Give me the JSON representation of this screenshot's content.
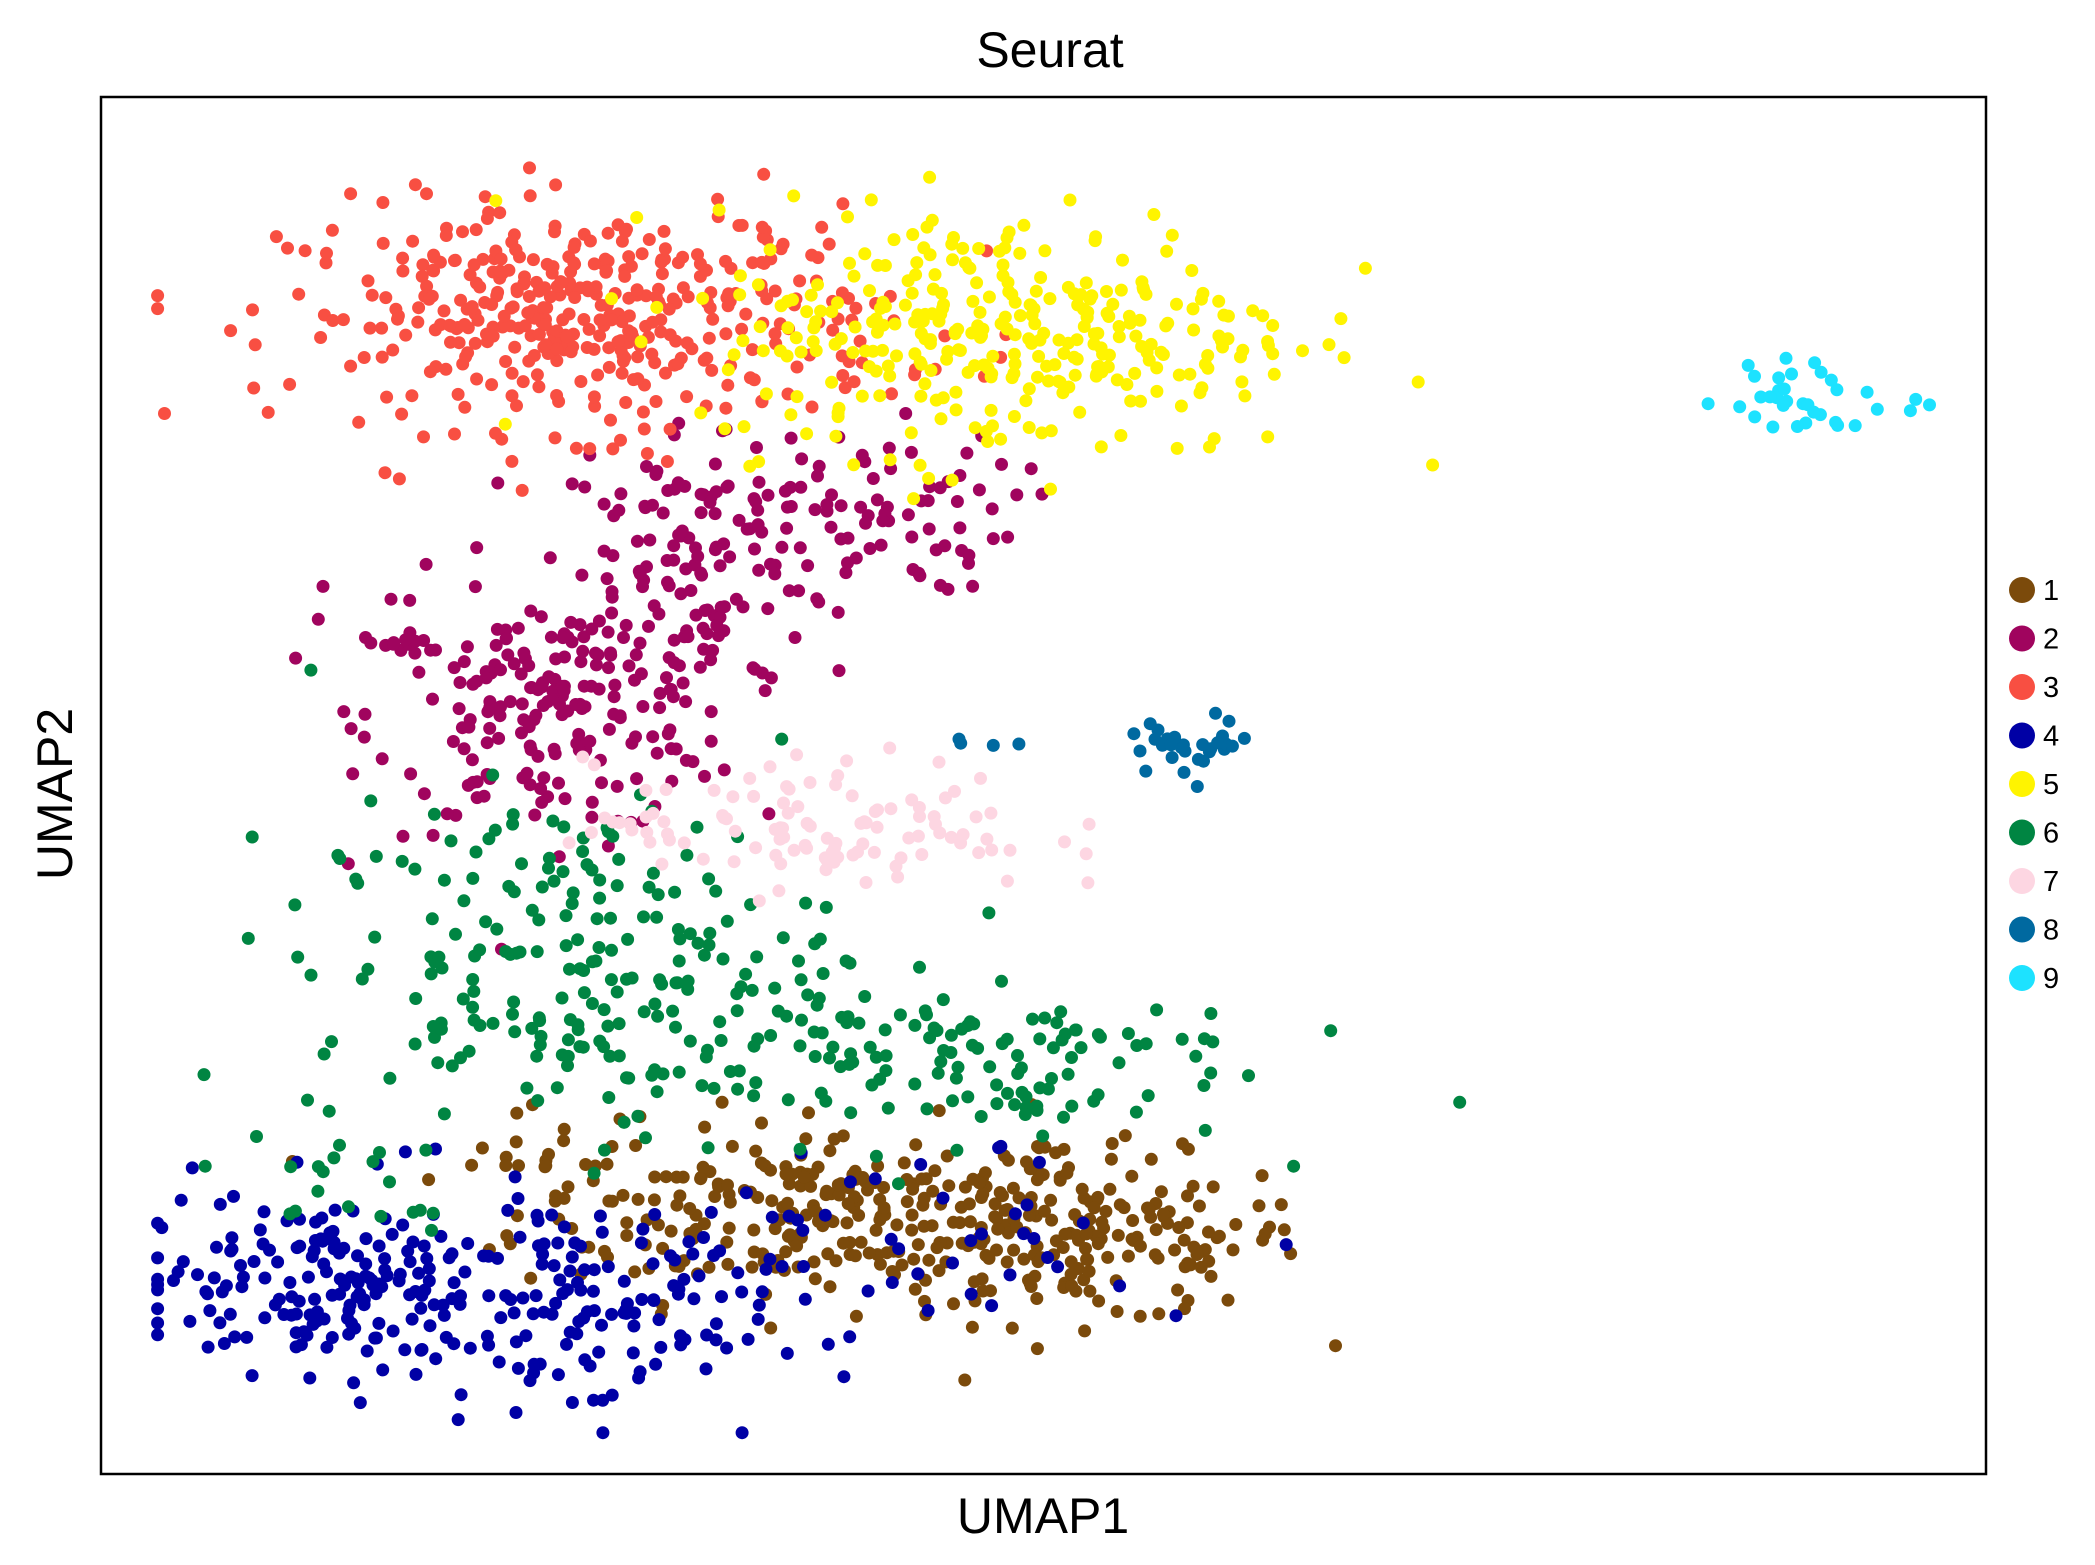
{
  "chart_data": {
    "type": "scatter",
    "title": "Seurat",
    "xlabel": "UMAP1",
    "ylabel": "UMAP2",
    "xlim": [
      0,
      100
    ],
    "ylim": [
      0,
      100
    ],
    "grid": false,
    "ticks": false,
    "legend_placement": "right",
    "series": [
      {
        "name": "1",
        "color": "#7B4A0B",
        "clusters": [
          {
            "cx": 38,
            "cy": 19,
            "sx": 8,
            "sy": 3.2,
            "n": 240
          },
          {
            "cx": 52,
            "cy": 17,
            "sx": 6,
            "sy": 3.0,
            "n": 170
          },
          {
            "cx": 24,
            "cy": 23,
            "sx": 2.5,
            "sy": 1.8,
            "n": 20
          }
        ]
      },
      {
        "name": "2",
        "color": "#A0045E",
        "clusters": [
          {
            "cx": 24,
            "cy": 55,
            "sx": 4.8,
            "sy": 4.2,
            "n": 190
          },
          {
            "cx": 31,
            "cy": 66,
            "sx": 3.8,
            "sy": 5.5,
            "n": 130
          },
          {
            "cx": 40,
            "cy": 70,
            "sx": 4.2,
            "sy": 3.0,
            "n": 80
          },
          {
            "cx": 15,
            "cy": 61,
            "sx": 1.6,
            "sy": 2.5,
            "n": 15
          }
        ]
      },
      {
        "name": "3",
        "color": "#F84F42",
        "clusters": [
          {
            "cx": 26,
            "cy": 84,
            "sx": 8.0,
            "sy": 4.0,
            "n": 420
          }
        ]
      },
      {
        "name": "4",
        "color": "#0000A5",
        "clusters": [
          {
            "cx": 13,
            "cy": 14,
            "sx": 5.5,
            "sy": 3.3,
            "n": 190
          },
          {
            "cx": 26,
            "cy": 11,
            "sx": 4.8,
            "sy": 3.8,
            "n": 110
          },
          {
            "cx": 42,
            "cy": 17,
            "sx": 10,
            "sy": 4.0,
            "n": 45
          }
        ]
      },
      {
        "name": "5",
        "color": "#FFF400",
        "clusters": [
          {
            "cx": 48,
            "cy": 83,
            "sx": 8.0,
            "sy": 4.5,
            "n": 330
          }
        ]
      },
      {
        "name": "6",
        "color": "#008542",
        "clusters": [
          {
            "cx": 25,
            "cy": 37,
            "sx": 7.0,
            "sy": 6.0,
            "n": 220
          },
          {
            "cx": 44,
            "cy": 30,
            "sx": 8.5,
            "sy": 3.0,
            "n": 130
          },
          {
            "cx": 12,
            "cy": 21,
            "sx": 3.5,
            "sy": 2.0,
            "n": 18
          }
        ]
      },
      {
        "name": "7",
        "color": "#FDD6E2",
        "clusters": [
          {
            "cx": 38,
            "cy": 47,
            "sx": 6.0,
            "sy": 2.4,
            "n": 110
          }
        ]
      },
      {
        "name": "8",
        "color": "#0069A0",
        "clusters": [
          {
            "cx": 58,
            "cy": 53,
            "sx": 1.7,
            "sy": 1.0,
            "n": 30
          },
          {
            "cx": 49,
            "cy": 53.5,
            "sx": 2.8,
            "sy": 0.4,
            "n": 4
          }
        ]
      },
      {
        "name": "9",
        "color": "#1DE2FF",
        "clusters": [
          {
            "cx": 91,
            "cy": 78,
            "sx": 3.0,
            "sy": 1.4,
            "n": 34
          }
        ]
      }
    ]
  }
}
